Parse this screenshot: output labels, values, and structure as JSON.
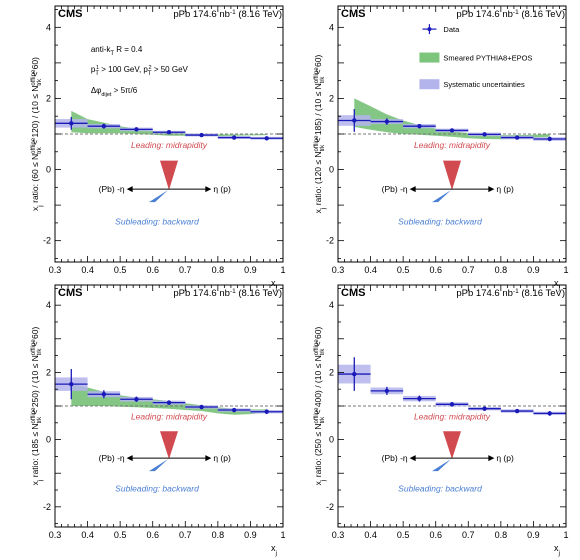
{
  "chart_data": [
    {
      "type": "scatter",
      "experiment": "CMS",
      "lumi": "pPb 174.6 nb",
      "lumi_sup": "-1",
      "energy": "(8.16 TeV)",
      "ylabel": "x_j ratio: (60 ≤ N_trk^offline < 120) / (10 ≤ N_trk^offline < 60)",
      "xlabel": "x_j",
      "xlim": [
        0.3,
        1.0
      ],
      "ylim": [
        -2.6,
        4.6
      ],
      "xticks": [
        0.3,
        0.4,
        0.5,
        0.6,
        0.7,
        0.8,
        0.9,
        1.0
      ],
      "yticks": [
        -2,
        0,
        2,
        4
      ],
      "reference_line": 1.0,
      "annotations": [
        "anti-k_T R = 0.4",
        "p_T^1 > 100 GeV, p_T^2 > 50 GeV",
        "Δφ_dijet > 5π/6"
      ],
      "leading_label": "Leading: midrapidity",
      "subleading_label": "Subleading: backward",
      "eta_left": "(Pb) -η",
      "eta_right": "η (p)",
      "data": {
        "x": [
          0.35,
          0.45,
          0.55,
          0.65,
          0.75,
          0.85,
          0.95
        ],
        "y": [
          1.3,
          1.22,
          1.13,
          1.05,
          0.97,
          0.9,
          0.88
        ],
        "yerr": [
          0.18,
          0.07,
          0.05,
          0.04,
          0.04,
          0.04,
          0.05
        ],
        "syst": [
          0.12,
          0.06,
          0.05,
          0.04,
          0.04,
          0.04,
          0.04
        ]
      },
      "model_band": {
        "x": [
          0.35,
          0.4,
          0.45,
          0.5,
          0.55,
          0.6,
          0.65,
          0.7,
          0.75,
          0.8,
          0.85,
          0.9,
          0.95
        ],
        "low": [
          1.05,
          1.02,
          1.02,
          1.02,
          1.0,
          0.98,
          0.95,
          0.95,
          0.94,
          0.94,
          0.95,
          0.96,
          0.97
        ],
        "high": [
          1.65,
          1.42,
          1.32,
          1.22,
          1.15,
          1.08,
          1.04,
          1.01,
          1.0,
          0.99,
          0.99,
          0.99,
          1.0
        ]
      }
    },
    {
      "type": "scatter",
      "experiment": "CMS",
      "lumi": "pPb 174.6 nb",
      "lumi_sup": "-1",
      "energy": "(8.16 TeV)",
      "ylabel": "x_j ratio: (120 ≤ N_trk^offline < 185) / (10 ≤ N_trk^offline < 60)",
      "xlabel": "x_j",
      "xlim": [
        0.3,
        1.0
      ],
      "ylim": [
        -2.6,
        4.6
      ],
      "xticks": [
        0.3,
        0.4,
        0.5,
        0.6,
        0.7,
        0.8,
        0.9,
        1.0
      ],
      "yticks": [
        -2,
        0,
        2,
        4
      ],
      "reference_line": 1.0,
      "legend": [
        "Data",
        "Smeared PYTHIA8+EPOS",
        "Systematic uncertainties"
      ],
      "leading_label": "Leading: midrapidity",
      "subleading_label": "Subleading: backward",
      "eta_left": "(Pb) -η",
      "eta_right": "η (p)",
      "data": {
        "x": [
          0.35,
          0.45,
          0.55,
          0.65,
          0.75,
          0.85,
          0.95
        ],
        "y": [
          1.38,
          1.35,
          1.22,
          1.1,
          0.99,
          0.9,
          0.86
        ],
        "yerr": [
          0.32,
          0.09,
          0.06,
          0.05,
          0.05,
          0.05,
          0.06
        ],
        "syst": [
          0.15,
          0.07,
          0.06,
          0.05,
          0.05,
          0.05,
          0.05
        ]
      },
      "model_band": {
        "x": [
          0.35,
          0.4,
          0.45,
          0.5,
          0.55,
          0.6,
          0.65,
          0.7,
          0.75,
          0.8,
          0.85,
          0.9,
          0.95
        ],
        "low": [
          1.2,
          1.12,
          1.05,
          1.0,
          0.98,
          0.95,
          0.92,
          0.88,
          0.86,
          0.85,
          0.87,
          0.9,
          0.92
        ],
        "high": [
          2.0,
          1.78,
          1.55,
          1.38,
          1.25,
          1.15,
          1.08,
          1.02,
          0.99,
          0.97,
          0.97,
          0.98,
          1.0
        ]
      }
    },
    {
      "type": "scatter",
      "experiment": "CMS",
      "lumi": "pPb 174.6 nb",
      "lumi_sup": "-1",
      "energy": "(8.16 TeV)",
      "ylabel": "x_j ratio: (185 ≤ N_trk^offline < 250) / (10 ≤ N_trk^offline < 60)",
      "xlabel": "x_j",
      "xlim": [
        0.3,
        1.0
      ],
      "ylim": [
        -2.6,
        4.6
      ],
      "xticks": [
        0.3,
        0.4,
        0.5,
        0.6,
        0.7,
        0.8,
        0.9,
        1.0
      ],
      "yticks": [
        -2,
        0,
        2,
        4
      ],
      "reference_line": 1.0,
      "leading_label": "Leading: midrapidity",
      "subleading_label": "Subleading: backward",
      "eta_left": "(Pb) -η",
      "eta_right": "η (p)",
      "data": {
        "x": [
          0.35,
          0.45,
          0.55,
          0.65,
          0.75,
          0.85,
          0.95
        ],
        "y": [
          1.65,
          1.35,
          1.2,
          1.1,
          0.97,
          0.88,
          0.83
        ],
        "yerr": [
          0.45,
          0.12,
          0.08,
          0.07,
          0.06,
          0.06,
          0.07
        ],
        "syst": [
          0.2,
          0.09,
          0.07,
          0.06,
          0.05,
          0.05,
          0.05
        ]
      },
      "model_band": {
        "x": [
          0.35,
          0.4,
          0.45,
          0.5,
          0.55,
          0.6,
          0.65,
          0.7,
          0.75,
          0.8,
          0.85,
          0.9,
          0.95
        ],
        "low": [
          1.0,
          1.0,
          1.0,
          0.98,
          0.96,
          0.94,
          0.92,
          0.88,
          0.85,
          0.78,
          0.74,
          0.76,
          0.8
        ],
        "high": [
          1.65,
          1.55,
          1.42,
          1.32,
          1.25,
          1.2,
          1.15,
          1.08,
          1.02,
          0.96,
          0.92,
          0.9,
          0.9
        ]
      }
    },
    {
      "type": "scatter",
      "experiment": "CMS",
      "lumi": "pPb 174.6 nb",
      "lumi_sup": "-1",
      "energy": "(8.16 TeV)",
      "ylabel": "x_j ratio: (250 ≤ N_trk^offline < 400) / (10 ≤ N_trk^offline < 60)",
      "xlabel": "x_j",
      "xlim": [
        0.3,
        1.0
      ],
      "ylim": [
        -2.6,
        4.6
      ],
      "xticks": [
        0.3,
        0.4,
        0.5,
        0.6,
        0.7,
        0.8,
        0.9,
        1.0
      ],
      "yticks": [
        -2,
        0,
        2,
        4
      ],
      "reference_line": 1.0,
      "leading_label": "Leading: midrapidity",
      "subleading_label": "Subleading: backward",
      "eta_left": "(Pb) -η",
      "eta_right": "η (p)",
      "data": {
        "x": [
          0.35,
          0.45,
          0.55,
          0.65,
          0.75,
          0.85,
          0.95
        ],
        "y": [
          1.95,
          1.45,
          1.22,
          1.05,
          0.92,
          0.85,
          0.78
        ],
        "yerr": [
          0.5,
          0.12,
          0.09,
          0.07,
          0.06,
          0.06,
          0.07
        ],
        "syst": [
          0.28,
          0.1,
          0.08,
          0.06,
          0.05,
          0.05,
          0.05
        ]
      }
    }
  ],
  "colors": {
    "data": "#1a1ab8",
    "model_band": "#7dc47d",
    "syst_band": "#b4b4ec",
    "leading_arrow": "#d04a50",
    "subleading_arrow": "#4a7fd4",
    "reference_line": "#777777"
  }
}
